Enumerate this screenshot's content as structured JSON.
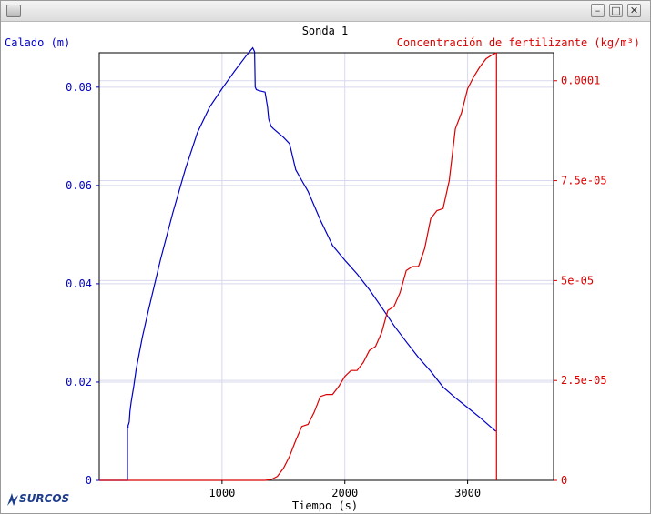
{
  "window": {
    "minimize_glyph": "–",
    "maximize_glyph": "□",
    "close_glyph": "✕"
  },
  "logo": {
    "text": "SURCOS"
  },
  "chart_data": {
    "type": "line",
    "title": "Sonda 1",
    "xlabel": "Tiempo (s)",
    "ylabel_left": "Calado (m)",
    "ylabel_right": "Concentración de fertilizante (kg/m³)",
    "xlim": [
      0,
      3700
    ],
    "ylim_left": [
      0,
      0.087
    ],
    "ylim_right": [
      0,
      0.000107
    ],
    "x_ticks": [
      1000,
      2000,
      3000
    ],
    "x_tick_labels": [
      "1000",
      "2000",
      "3000"
    ],
    "y_left_ticks": [
      0,
      0.02,
      0.04,
      0.06,
      0.08
    ],
    "y_left_tick_labels": [
      "0",
      "0.02",
      "0.04",
      "0.06",
      "0.08"
    ],
    "y_right_ticks": [
      0,
      2.5e-05,
      5e-05,
      7.5e-05,
      0.0001
    ],
    "y_right_tick_labels": [
      "0",
      "2.5e-05",
      "5e-05",
      "7.5e-05",
      "0.0001"
    ],
    "grid": true,
    "colors": {
      "left": "#0000c8",
      "right": "#dc0000",
      "grid": "#d8d8ee"
    },
    "vertical_line_x": 3235,
    "series": [
      {
        "axis": "left",
        "color": "#0000c8",
        "x": [
          0,
          230,
          230,
          235,
          235,
          240,
          245,
          250,
          260,
          280,
          300,
          350,
          400,
          500,
          600,
          700,
          800,
          900,
          1000,
          1100,
          1200,
          1250,
          1265,
          1270,
          1280,
          1300,
          1350,
          1370,
          1380,
          1400,
          1420,
          1500,
          1550,
          1600,
          1650,
          1700,
          1800,
          1900,
          2000,
          2100,
          2200,
          2300,
          2400,
          2500,
          2600,
          2700,
          2800,
          2900,
          3000,
          3100,
          3200,
          3230
        ],
        "y": [
          0,
          0,
          0.0107,
          0.0107,
          0.0112,
          0.0115,
          0.012,
          0.014,
          0.016,
          0.019,
          0.0225,
          0.029,
          0.0345,
          0.045,
          0.0545,
          0.0632,
          0.0708,
          0.076,
          0.0797,
          0.0832,
          0.0865,
          0.088,
          0.0872,
          0.08,
          0.0795,
          0.0793,
          0.079,
          0.076,
          0.0735,
          0.072,
          0.0715,
          0.0698,
          0.0685,
          0.0632,
          0.061,
          0.0588,
          0.053,
          0.0478,
          0.0448,
          0.042,
          0.0388,
          0.0352,
          0.0315,
          0.0282,
          0.025,
          0.0222,
          0.019,
          0.0168,
          0.0148,
          0.0128,
          0.0106,
          0.01
        ]
      },
      {
        "axis": "right",
        "color": "#dc0000",
        "x": [
          0,
          1350,
          1400,
          1450,
          1500,
          1550,
          1600,
          1650,
          1700,
          1750,
          1800,
          1850,
          1900,
          1950,
          2000,
          2050,
          2100,
          2150,
          2200,
          2250,
          2300,
          2350,
          2400,
          2450,
          2500,
          2550,
          2600,
          2650,
          2700,
          2750,
          2800,
          2850,
          2900,
          2950,
          3000,
          3050,
          3100,
          3150,
          3200,
          3235
        ],
        "y": [
          0,
          0,
          2e-07,
          1e-06,
          3e-06,
          6e-06,
          1e-05,
          1.35e-05,
          1.4e-05,
          1.7e-05,
          2.1e-05,
          2.15e-05,
          2.15e-05,
          2.35e-05,
          2.6e-05,
          2.75e-05,
          2.75e-05,
          2.95e-05,
          3.25e-05,
          3.35e-05,
          3.7e-05,
          4.25e-05,
          4.35e-05,
          4.7e-05,
          5.25e-05,
          5.35e-05,
          5.35e-05,
          5.8e-05,
          6.55e-05,
          6.75e-05,
          6.8e-05,
          7.5e-05,
          8.8e-05,
          9.2e-05,
          9.8e-05,
          0.000101,
          0.0001035,
          0.0001055,
          0.0001065,
          0.000107
        ]
      }
    ]
  }
}
